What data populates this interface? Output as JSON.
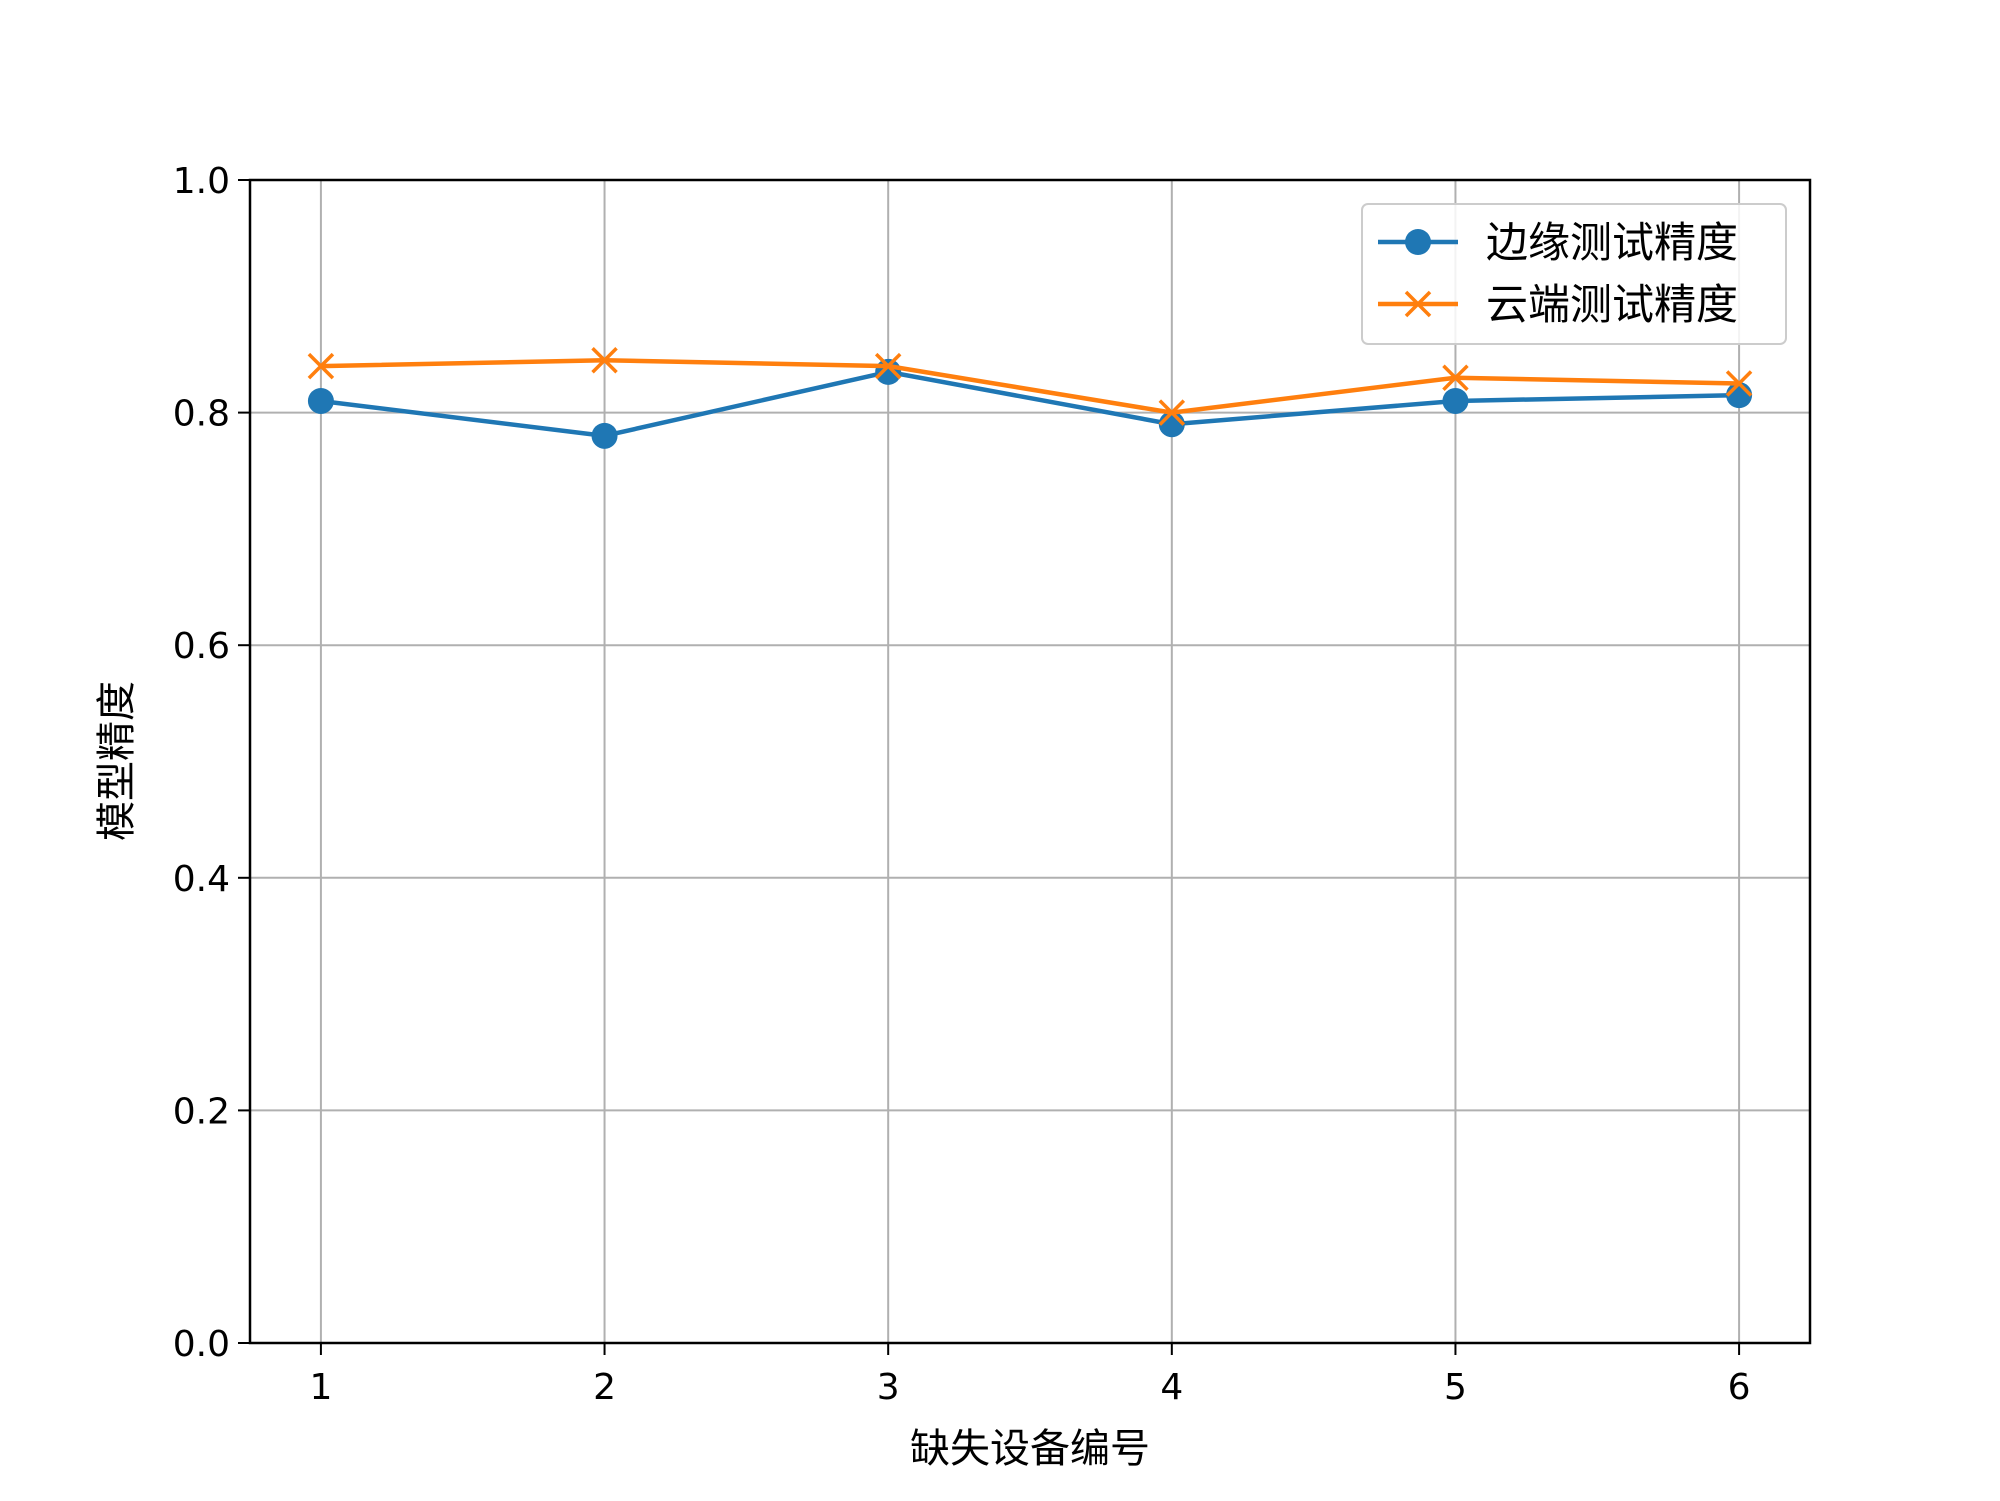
{
  "chart_data": {
    "type": "line",
    "x": [
      1,
      2,
      3,
      4,
      5,
      6
    ],
    "x_tick_labels": [
      "1",
      "2",
      "3",
      "4",
      "5",
      "6"
    ],
    "y_tick_labels": [
      "0.0",
      "0.2",
      "0.4",
      "0.6",
      "0.8",
      "1.0"
    ],
    "y_ticks": [
      0.0,
      0.2,
      0.4,
      0.6,
      0.8,
      1.0
    ],
    "xlim": [
      0.75,
      6.25
    ],
    "ylim": [
      0.0,
      1.0
    ],
    "xlabel": "缺失设备编号",
    "ylabel": "模型精度",
    "title": "",
    "grid": true,
    "legend_position": "top-right",
    "series": [
      {
        "name": "边缘测试精度",
        "values": [
          0.81,
          0.78,
          0.835,
          0.79,
          0.81,
          0.815
        ],
        "color": "#1f77b4",
        "marker": "circle"
      },
      {
        "name": "云端测试精度",
        "values": [
          0.84,
          0.845,
          0.84,
          0.8,
          0.83,
          0.825
        ],
        "color": "#ff7f0e",
        "marker": "x"
      }
    ]
  }
}
